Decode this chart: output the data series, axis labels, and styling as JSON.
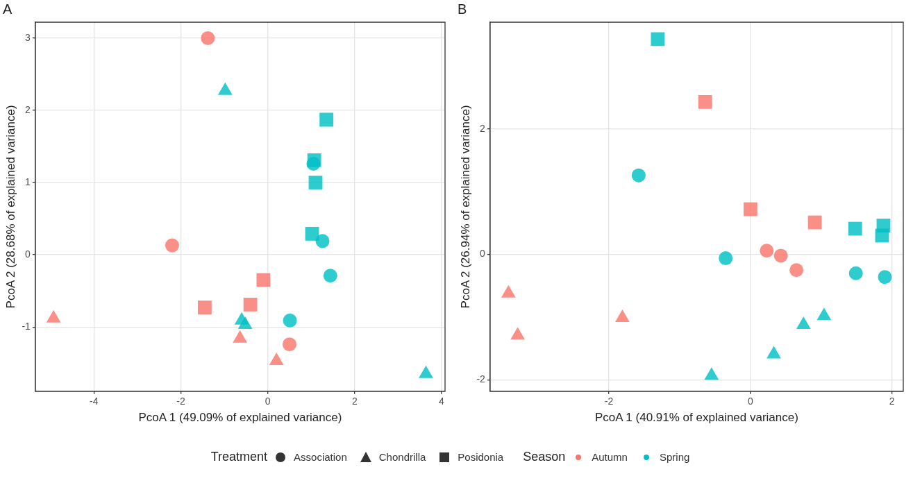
{
  "chart_data": [
    {
      "type": "scatter",
      "title": "A",
      "xlabel": "PcoA 1 (49.09% of explained variance)",
      "ylabel": "PcoA 2 (28.68% of explained variance)",
      "xlim": [
        -5.35,
        4.08
      ],
      "ylim": [
        -1.89,
        3.22
      ],
      "xticks": [
        -4,
        -2,
        0,
        2,
        4
      ],
      "yticks": [
        -1,
        0,
        1,
        2,
        3
      ],
      "grid": true,
      "legend": "bottom",
      "legend_title": "Treatment",
      "annotations": [
        "Season"
      ],
      "series": [
        {
          "marker": "circle",
          "color": "#f8766d",
          "x": [
            -1.38,
            -2.2,
            0.5
          ],
          "values": [
            3.0,
            0.13,
            -1.24
          ]
        },
        {
          "marker": "circle",
          "color": "#00bfc4",
          "x": [
            1.05,
            1.26,
            1.44,
            0.51
          ],
          "values": [
            1.26,
            0.19,
            -0.29,
            -0.91
          ]
        },
        {
          "marker": "triangle",
          "color": "#f8766d",
          "x": [
            -4.93,
            -0.64,
            0.2
          ],
          "values": [
            -0.88,
            -1.16,
            -1.47
          ]
        },
        {
          "marker": "triangle",
          "color": "#00bfc4",
          "x": [
            -0.98,
            -0.6,
            -0.52,
            3.64
          ],
          "values": [
            2.27,
            -0.91,
            -0.97,
            -1.65
          ]
        },
        {
          "marker": "square",
          "color": "#f8766d",
          "x": [
            -0.1,
            -1.45,
            -0.4
          ],
          "values": [
            -0.35,
            -0.73,
            -0.69
          ]
        },
        {
          "marker": "square",
          "color": "#00bfc4",
          "x": [
            1.35,
            1.07,
            1.1,
            1.02
          ],
          "values": [
            1.87,
            1.31,
            1.0,
            0.29
          ]
        },
        {
          "name": "Association",
          "marker": "circle",
          "color": "#333333"
        },
        {
          "name": "Chondrilla",
          "marker": "triangle",
          "color": "#333333"
        },
        {
          "name": "Posidonia",
          "marker": "square",
          "color": "#333333"
        },
        {
          "name": "Autumn",
          "marker": "circle",
          "color": "#f8766d"
        },
        {
          "name": "Spring",
          "marker": "circle",
          "color": "#00bfc4"
        }
      ]
    },
    {
      "type": "scatter",
      "title": "B",
      "xlabel": "PcoA 1 (40.91% of explained variance)",
      "ylabel": "PcoA 2 (26.94% of explained variance)",
      "xlim": [
        -3.68,
        2.16
      ],
      "ylim": [
        -2.18,
        3.7
      ],
      "xticks": [
        -2,
        0,
        2
      ],
      "yticks": [
        -2,
        0,
        2
      ],
      "grid": true,
      "series": [
        {
          "marker": "circle",
          "color": "#f8766d",
          "x": [
            0.23,
            0.43,
            0.65
          ],
          "values": [
            0.06,
            -0.02,
            -0.25
          ]
        },
        {
          "marker": "circle",
          "color": "#00bfc4",
          "x": [
            -1.58,
            -0.35,
            1.49,
            1.9
          ],
          "values": [
            1.26,
            -0.06,
            -0.3,
            -0.36
          ]
        },
        {
          "marker": "triangle",
          "color": "#f8766d",
          "x": [
            -3.42,
            -3.29,
            -1.81
          ],
          "values": [
            -0.62,
            -1.29,
            -1.01
          ]
        },
        {
          "marker": "triangle",
          "color": "#00bfc4",
          "x": [
            -0.55,
            0.33,
            0.75,
            1.04
          ],
          "values": [
            -1.93,
            -1.59,
            -1.12,
            -0.98
          ]
        },
        {
          "marker": "square",
          "color": "#f8766d",
          "x": [
            -0.64,
            0.0,
            0.91
          ],
          "values": [
            2.43,
            0.72,
            0.51
          ]
        },
        {
          "marker": "square",
          "color": "#00bfc4",
          "x": [
            -1.31,
            1.48,
            1.88,
            1.86
          ],
          "values": [
            3.43,
            0.41,
            0.46,
            0.3
          ]
        }
      ]
    }
  ]
}
